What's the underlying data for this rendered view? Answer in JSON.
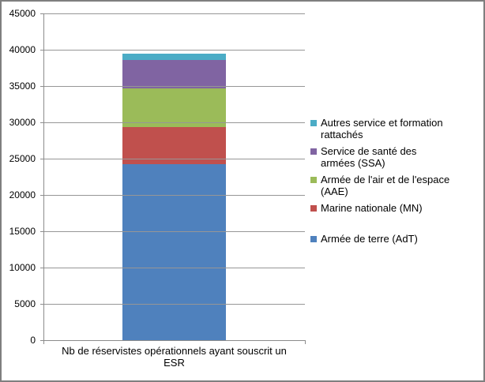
{
  "chart_data": {
    "type": "bar",
    "stacked": true,
    "title": "",
    "xlabel": "Nb de réservistes opérationnels ayant souscrit un ESR",
    "xlabel_lines": [
      "Nb de réservistes opérationnels ayant souscrit un",
      "ESR"
    ],
    "ylabel": "",
    "categories": [
      "Nb de réservistes opérationnels ayant souscrit un ESR"
    ],
    "series": [
      {
        "name": "Armée de terre (AdT)",
        "color": "#4F81BD",
        "values": [
          24200
        ],
        "legend_lines": [
          "Armée de terre (AdT)"
        ]
      },
      {
        "name": "Marine nationale (MN)",
        "color": "#C0504D",
        "values": [
          5150
        ],
        "legend_lines": [
          "Marine nationale (MN)"
        ]
      },
      {
        "name": "Armée de l'air et de l'espace (AAE)",
        "color": "#9BBB59",
        "values": [
          5300
        ],
        "legend_lines": [
          "Armée de l'air et de l'espace",
          "(AAE)"
        ]
      },
      {
        "name": "Service de santé des armées (SSA)",
        "color": "#8064A2",
        "values": [
          3950
        ],
        "legend_lines": [
          "Service de santé des",
          "armées (SSA)"
        ]
      },
      {
        "name": "Autres service et formation rattachés",
        "color": "#4BACC6",
        "values": [
          900
        ],
        "legend_lines": [
          "Autres service et formation",
          "rattachés"
        ]
      }
    ],
    "ylim": [
      0,
      45000
    ],
    "ytick_step": 5000,
    "ytick_labels": [
      "0",
      "5000",
      "10000",
      "15000",
      "20000",
      "25000",
      "30000",
      "35000",
      "40000",
      "45000"
    ],
    "grid": true,
    "legend_position": "right",
    "legend_order": "reversed",
    "colors": {
      "gridline": "#969696",
      "axis": "#8C8C8C",
      "frame_border": "#7F7F7F",
      "background": "#FFFFFF",
      "text": "#000000"
    }
  }
}
